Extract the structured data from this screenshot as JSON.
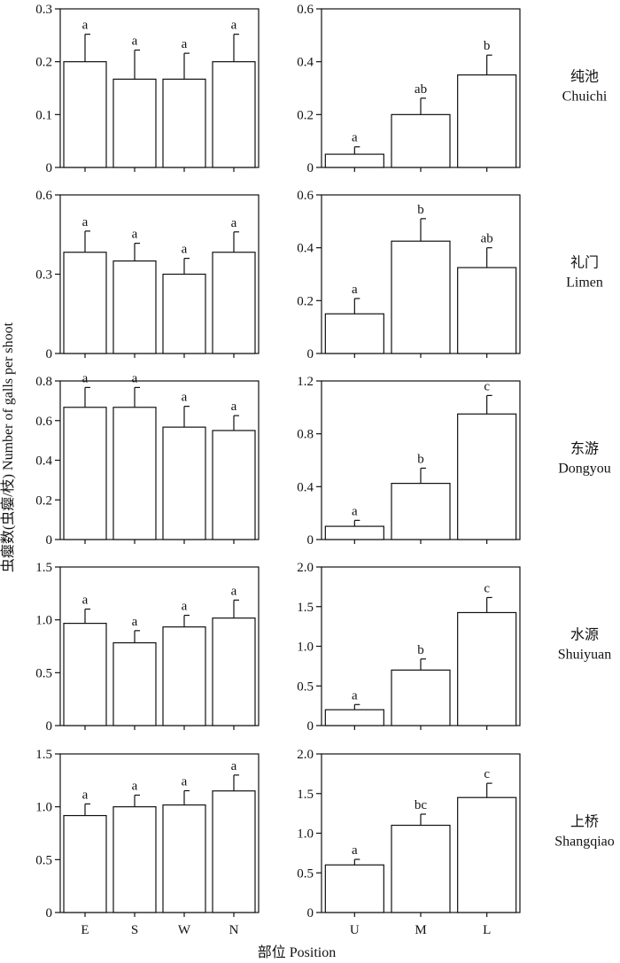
{
  "figure": {
    "ylabel": "虫瘿数(虫瘿/枝) Number of galls per shoot",
    "xlabel": "部位 Position",
    "left_categories": [
      "E",
      "S",
      "W",
      "N"
    ],
    "right_categories": [
      "U",
      "M",
      "L"
    ]
  },
  "chart_data": [
    {
      "type": "bar",
      "row": 0,
      "col": "left",
      "categories": [
        "E",
        "S",
        "W",
        "N"
      ],
      "values": [
        0.2,
        0.167,
        0.167,
        0.2
      ],
      "errors": [
        0.052,
        0.055,
        0.049,
        0.052
      ],
      "letters": [
        "a",
        "a",
        "a",
        "a"
      ],
      "ylim": [
        0,
        0.3
      ],
      "yticks": [
        "0",
        "0.1",
        "0.2",
        "0.3"
      ],
      "show_xticks": false
    },
    {
      "type": "bar",
      "row": 0,
      "col": "right",
      "categories": [
        "U",
        "M",
        "L"
      ],
      "values": [
        0.05,
        0.2,
        0.35
      ],
      "errors": [
        0.028,
        0.062,
        0.075
      ],
      "letters": [
        "a",
        "ab",
        "b"
      ],
      "ylim": [
        0,
        0.6
      ],
      "yticks": [
        "0",
        "0.2",
        "0.4",
        "0.6"
      ],
      "site_zh": "纯池",
      "site_en": "Chuichi",
      "show_xticks": false
    },
    {
      "type": "bar",
      "row": 1,
      "col": "left",
      "categories": [
        "E",
        "S",
        "W",
        "N"
      ],
      "values": [
        0.383,
        0.35,
        0.3,
        0.383
      ],
      "errors": [
        0.08,
        0.067,
        0.06,
        0.077
      ],
      "letters": [
        "a",
        "a",
        "a",
        "a"
      ],
      "ylim": [
        0,
        0.6
      ],
      "yticks": [
        "0",
        "0.3",
        "0.6"
      ],
      "show_xticks": false
    },
    {
      "type": "bar",
      "row": 1,
      "col": "right",
      "categories": [
        "U",
        "M",
        "L"
      ],
      "values": [
        0.15,
        0.425,
        0.325
      ],
      "errors": [
        0.058,
        0.085,
        0.075
      ],
      "letters": [
        "a",
        "b",
        "ab"
      ],
      "ylim": [
        0,
        0.6
      ],
      "yticks": [
        "0",
        "0.2",
        "0.4",
        "0.6"
      ],
      "site_zh": "礼门",
      "site_en": "Limen",
      "show_xticks": false
    },
    {
      "type": "bar",
      "row": 2,
      "col": "left",
      "categories": [
        "E",
        "S",
        "W",
        "N"
      ],
      "values": [
        0.667,
        0.667,
        0.567,
        0.55
      ],
      "errors": [
        0.1,
        0.1,
        0.105,
        0.075
      ],
      "letters": [
        "a",
        "a",
        "a",
        "a"
      ],
      "ylim": [
        0,
        0.8
      ],
      "yticks": [
        "0",
        "0.2",
        "0.4",
        "0.6",
        "0.8"
      ],
      "show_xticks": false
    },
    {
      "type": "bar",
      "row": 2,
      "col": "right",
      "categories": [
        "U",
        "M",
        "L"
      ],
      "values": [
        0.1,
        0.425,
        0.95
      ],
      "errors": [
        0.045,
        0.115,
        0.14
      ],
      "letters": [
        "a",
        "b",
        "c"
      ],
      "ylim": [
        0,
        1.2
      ],
      "yticks": [
        "0",
        "0.4",
        "0.8",
        "1.2"
      ],
      "site_zh": "东游",
      "site_en": "Dongyou",
      "show_xticks": false
    },
    {
      "type": "bar",
      "row": 3,
      "col": "left",
      "categories": [
        "E",
        "S",
        "W",
        "N"
      ],
      "values": [
        0.967,
        0.783,
        0.933,
        1.017
      ],
      "errors": [
        0.135,
        0.115,
        0.11,
        0.17
      ],
      "letters": [
        "a",
        "a",
        "a",
        "a"
      ],
      "ylim": [
        0,
        1.5
      ],
      "yticks": [
        "0",
        "0.5",
        "1.0",
        "1.5"
      ],
      "show_xticks": false
    },
    {
      "type": "bar",
      "row": 3,
      "col": "right",
      "categories": [
        "U",
        "M",
        "L"
      ],
      "values": [
        0.2,
        0.7,
        1.425
      ],
      "errors": [
        0.065,
        0.14,
        0.19
      ],
      "letters": [
        "a",
        "b",
        "c"
      ],
      "ylim": [
        0,
        2.0
      ],
      "yticks": [
        "0",
        "0.5",
        "1.0",
        "1.5",
        "2.0"
      ],
      "site_zh": "水源",
      "site_en": "Shuiyuan",
      "show_xticks": false
    },
    {
      "type": "bar",
      "row": 4,
      "col": "left",
      "categories": [
        "E",
        "S",
        "W",
        "N"
      ],
      "values": [
        0.917,
        1.0,
        1.017,
        1.15
      ],
      "errors": [
        0.11,
        0.11,
        0.135,
        0.15
      ],
      "letters": [
        "a",
        "a",
        "a",
        "a"
      ],
      "ylim": [
        0,
        1.5
      ],
      "yticks": [
        "0",
        "0.5",
        "1.0",
        "1.5"
      ],
      "show_xticks": true
    },
    {
      "type": "bar",
      "row": 4,
      "col": "right",
      "categories": [
        "U",
        "M",
        "L"
      ],
      "values": [
        0.6,
        1.1,
        1.45
      ],
      "errors": [
        0.07,
        0.14,
        0.18
      ],
      "letters": [
        "a",
        "bc",
        "c"
      ],
      "ylim": [
        0,
        2.0
      ],
      "yticks": [
        "0",
        "0.5",
        "1.0",
        "1.5",
        "2.0"
      ],
      "site_zh": "上桥",
      "site_en": "Shangqiao",
      "show_xticks": true
    }
  ]
}
